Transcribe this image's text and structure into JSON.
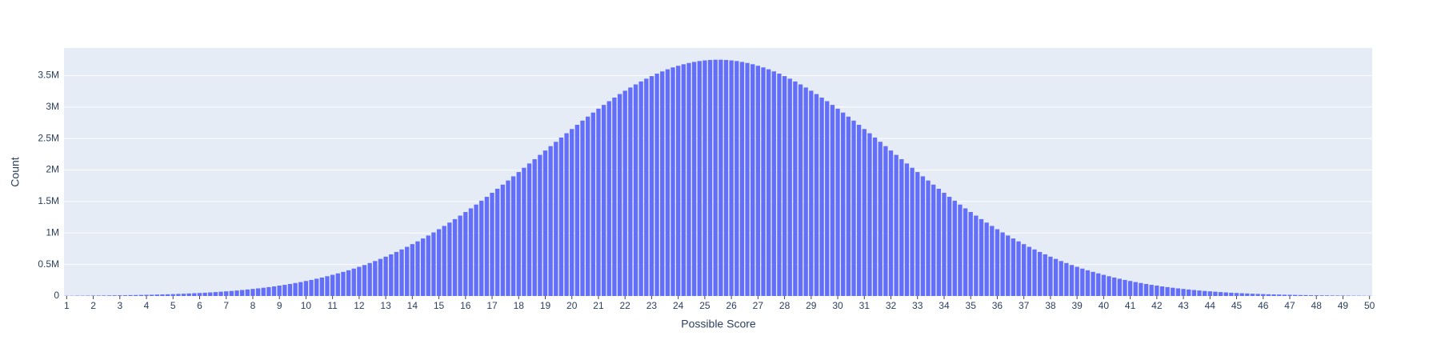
{
  "chart_data": {
    "type": "bar",
    "x_label": "Possible Score",
    "y_label": "Count",
    "color": "#636efa",
    "grid": true,
    "xlim": [
      0.9,
      50.1
    ],
    "ylim": [
      0,
      3936000
    ],
    "xticks": [
      1,
      2,
      3,
      4,
      5,
      6,
      7,
      8,
      9,
      10,
      11,
      12,
      13,
      14,
      15,
      16,
      17,
      18,
      19,
      20,
      21,
      22,
      23,
      24,
      25,
      26,
      27,
      28,
      29,
      30,
      31,
      32,
      33,
      34,
      35,
      36,
      37,
      38,
      39,
      40,
      41,
      42,
      43,
      44,
      45,
      46,
      47,
      48,
      49,
      50
    ],
    "yticks": [
      0,
      {
        "value": 500000,
        "label": "0.5M"
      },
      {
        "value": 1000000,
        "label": "1M"
      },
      {
        "value": 1500000,
        "label": "1.5M"
      },
      {
        "value": 2000000,
        "label": "2M"
      },
      {
        "value": 2500000,
        "label": "2.5M"
      },
      {
        "value": 3000000,
        "label": "3M"
      },
      {
        "value": 3500000,
        "label": "3.5M"
      }
    ],
    "x": [
      1,
      1.2,
      1.4,
      1.6,
      1.8,
      2,
      2.2,
      2.4,
      2.6,
      2.8,
      3,
      3.2,
      3.4,
      3.6,
      3.8,
      4,
      4.2,
      4.4,
      4.6,
      4.8,
      5,
      5.2,
      5.4,
      5.6,
      5.8,
      6,
      6.2,
      6.4,
      6.6,
      6.8,
      7,
      7.2,
      7.4,
      7.6,
      7.8,
      8,
      8.2,
      8.4,
      8.6,
      8.8,
      9,
      9.2,
      9.4,
      9.6,
      9.8,
      10,
      10.2,
      10.4,
      10.6,
      10.8,
      11,
      11.2,
      11.4,
      11.6,
      11.8,
      12,
      12.2,
      12.4,
      12.6,
      12.8,
      13,
      13.2,
      13.4,
      13.6,
      13.8,
      14,
      14.2,
      14.4,
      14.6,
      14.8,
      15,
      15.2,
      15.4,
      15.6,
      15.8,
      16,
      16.2,
      16.4,
      16.6,
      16.8,
      17,
      17.2,
      17.4,
      17.6,
      17.8,
      18,
      18.2,
      18.4,
      18.6,
      18.8,
      19,
      19.2,
      19.4,
      19.6,
      19.8,
      20,
      20.2,
      20.4,
      20.6,
      20.8,
      21,
      21.2,
      21.4,
      21.6,
      21.8,
      22,
      22.2,
      22.4,
      22.6,
      22.8,
      23,
      23.2,
      23.4,
      23.6,
      23.8,
      24,
      24.2,
      24.4,
      24.6,
      24.8,
      25,
      25.2,
      25.4,
      25.6,
      25.8,
      26,
      26.2,
      26.4,
      26.6,
      26.8,
      27,
      27.2,
      27.4,
      27.6,
      27.8,
      28,
      28.2,
      28.4,
      28.6,
      28.8,
      29,
      29.2,
      29.4,
      29.6,
      29.8,
      30,
      30.2,
      30.4,
      30.6,
      30.8,
      31,
      31.2,
      31.4,
      31.6,
      31.8,
      32,
      32.2,
      32.4,
      32.6,
      32.8,
      33,
      33.2,
      33.4,
      33.6,
      33.8,
      34,
      34.2,
      34.4,
      34.6,
      34.8,
      35,
      35.2,
      35.4,
      35.6,
      35.8,
      36,
      36.2,
      36.4,
      36.6,
      36.8,
      37,
      37.2,
      37.4,
      37.6,
      37.8,
      38,
      38.2,
      38.4,
      38.6,
      38.8,
      39,
      39.2,
      39.4,
      39.6,
      39.8,
      40,
      40.2,
      40.4,
      40.6,
      40.8,
      41,
      41.2,
      41.4,
      41.6,
      41.8,
      42,
      42.2,
      42.4,
      42.6,
      42.8,
      43,
      43.2,
      43.4,
      43.6,
      43.8,
      44,
      44.2,
      44.4,
      44.6,
      44.8,
      45,
      45.2,
      45.4,
      45.6,
      45.8,
      46,
      46.2,
      46.4,
      46.6,
      46.8,
      47,
      47.2,
      47.4,
      47.6,
      47.8,
      48,
      48.2,
      48.4,
      48.6,
      48.8,
      49,
      49.2,
      49.4,
      49.6,
      49.8,
      50
    ],
    "values": [
      4000,
      4000,
      5000,
      5000,
      6000,
      7000,
      7000,
      8000,
      9000,
      10000,
      11000,
      12000,
      14000,
      15000,
      17000,
      19000,
      20000,
      23000,
      25000,
      27000,
      30000,
      33000,
      36000,
      40000,
      44000,
      48000,
      52000,
      57000,
      62000,
      68000,
      74000,
      80000,
      87000,
      95000,
      103000,
      112000,
      121000,
      131000,
      141000,
      152000,
      165000,
      177000,
      191000,
      206000,
      221000,
      238000,
      255000,
      274000,
      293000,
      314000,
      336000,
      359000,
      383000,
      408000,
      435000,
      463000,
      492000,
      523000,
      555000,
      589000,
      624000,
      661000,
      699000,
      739000,
      780000,
      823000,
      867000,
      913000,
      960000,
      1009000,
      1060000,
      1112000,
      1165000,
      1220000,
      1276000,
      1333000,
      1391000,
      1451000,
      1512000,
      1574000,
      1638000,
      1702000,
      1767000,
      1833000,
      1899000,
      1967000,
      2035000,
      2103000,
      2171000,
      2240000,
      2309000,
      2378000,
      2447000,
      2515000,
      2583000,
      2650000,
      2717000,
      2783000,
      2847000,
      2911000,
      2973000,
      3033000,
      3092000,
      3149000,
      3205000,
      3258000,
      3309000,
      3358000,
      3405000,
      3449000,
      3490000,
      3529000,
      3565000,
      3598000,
      3628000,
      3654000,
      3678000,
      3698000,
      3715000,
      3729000,
      3739000,
      3746000,
      3750000,
      3750000,
      3746000,
      3739000,
      3729000,
      3715000,
      3698000,
      3678000,
      3654000,
      3628000,
      3598000,
      3565000,
      3529000,
      3490000,
      3449000,
      3405000,
      3358000,
      3309000,
      3258000,
      3205000,
      3149000,
      3092000,
      3033000,
      2973000,
      2911000,
      2847000,
      2783000,
      2717000,
      2650000,
      2583000,
      2515000,
      2447000,
      2378000,
      2309000,
      2240000,
      2171000,
      2103000,
      2035000,
      1967000,
      1899000,
      1833000,
      1767000,
      1702000,
      1638000,
      1574000,
      1512000,
      1451000,
      1391000,
      1333000,
      1276000,
      1220000,
      1165000,
      1112000,
      1060000,
      1009000,
      960000,
      913000,
      867000,
      823000,
      780000,
      739000,
      699000,
      661000,
      624000,
      589000,
      555000,
      523000,
      492000,
      463000,
      435000,
      408000,
      383000,
      359000,
      336000,
      314000,
      293000,
      274000,
      255000,
      238000,
      221000,
      206000,
      191000,
      177000,
      165000,
      152000,
      141000,
      131000,
      121000,
      112000,
      103000,
      95000,
      87000,
      80000,
      74000,
      68000,
      62000,
      57000,
      52000,
      48000,
      44000,
      40000,
      36000,
      33000,
      30000,
      27000,
      25000,
      23000,
      20000,
      19000,
      17000,
      15000,
      14000,
      12000,
      11000,
      10000,
      9000,
      8000,
      7000,
      7000,
      6000,
      5000,
      5000,
      4000,
      4000
    ]
  }
}
